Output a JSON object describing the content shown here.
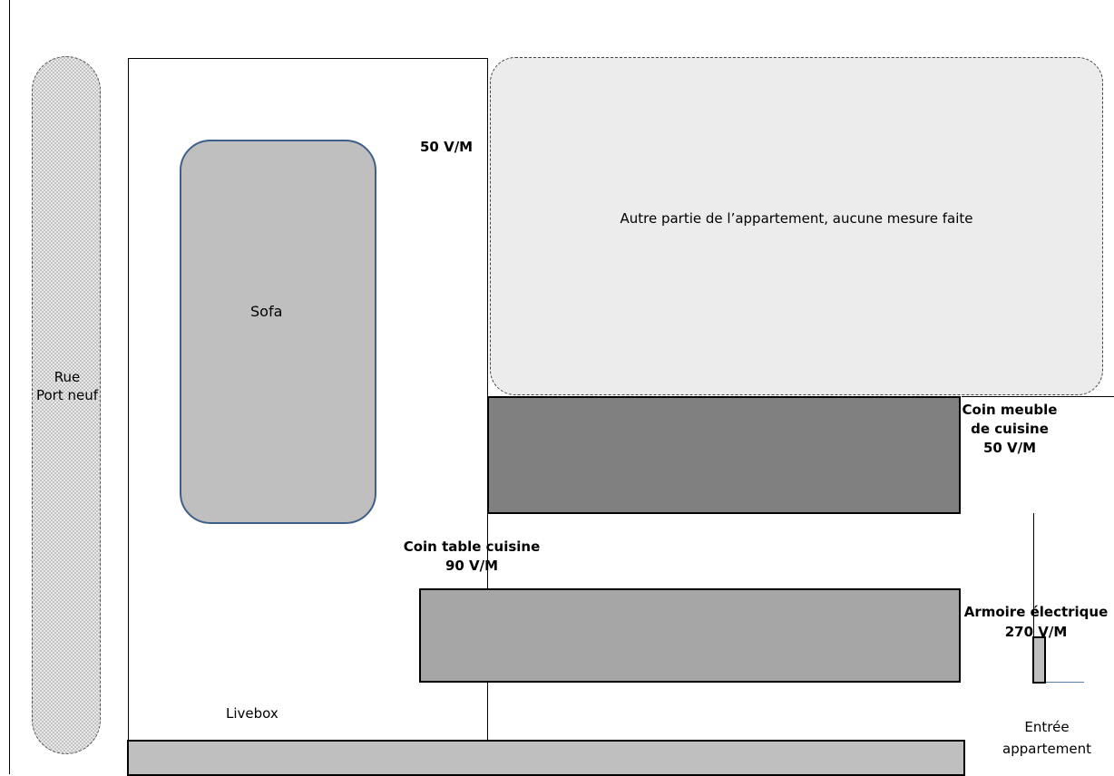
{
  "labels": {
    "street": [
      "Rue",
      "Port neuf"
    ],
    "sofa": "Sofa",
    "measure_top": "50 V/M",
    "other_area": "Autre partie de l’appartement, aucune mesure faite",
    "kitchen_furniture": [
      "Coin meuble",
      "de cuisine",
      "50 V/M"
    ],
    "kitchen_table": [
      "Coin table cuisine",
      "90 V/M"
    ],
    "electrical_panel": [
      "Armoire électrique",
      "270 V/M"
    ],
    "livebox": "Livebox",
    "entry": [
      "Entrée",
      "appartement"
    ]
  },
  "colors": {
    "sofa_fill": "#bfbfbf",
    "sofa_border": "#3e5f8a",
    "kitchen_furniture_fill": "#808080",
    "kitchen_table_fill": "#a6a6a6",
    "other_area_fill": "#ececec",
    "bottom_bar_fill": "#bfbfbf"
  }
}
